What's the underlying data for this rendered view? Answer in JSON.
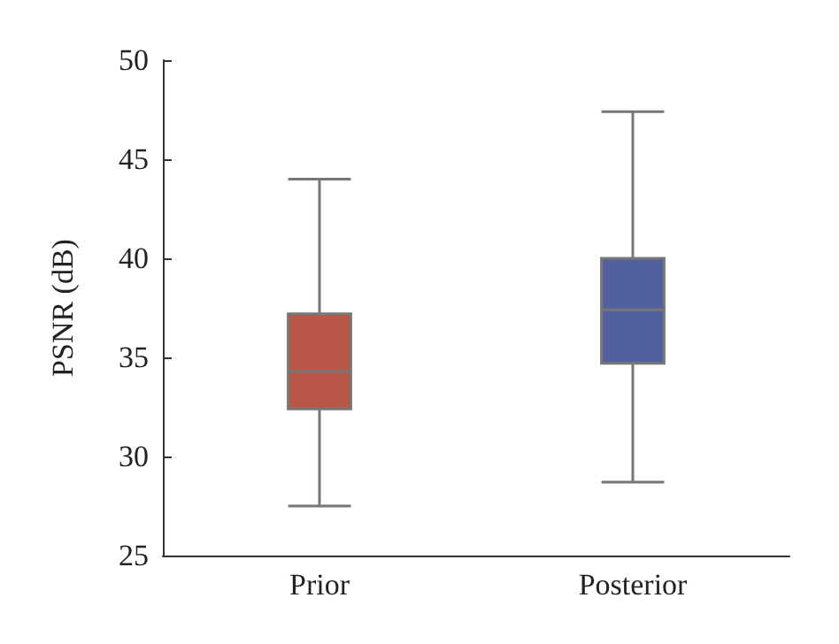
{
  "chart_data": {
    "type": "box",
    "ylabel": "PSNR (dB)",
    "categories": [
      "Prior",
      "Posterior"
    ],
    "colors": [
      "#b85748",
      "#52609e"
    ],
    "boxes": [
      {
        "low": 27.5,
        "q1": 32.4,
        "median": 34.3,
        "q3": 37.2,
        "high": 44.0
      },
      {
        "low": 28.7,
        "q1": 34.7,
        "median": 37.4,
        "q3": 40.0,
        "high": 47.4
      }
    ],
    "ylim": [
      25,
      50
    ],
    "yticks": [
      25,
      30,
      35,
      40,
      45,
      50
    ],
    "grid": false
  }
}
